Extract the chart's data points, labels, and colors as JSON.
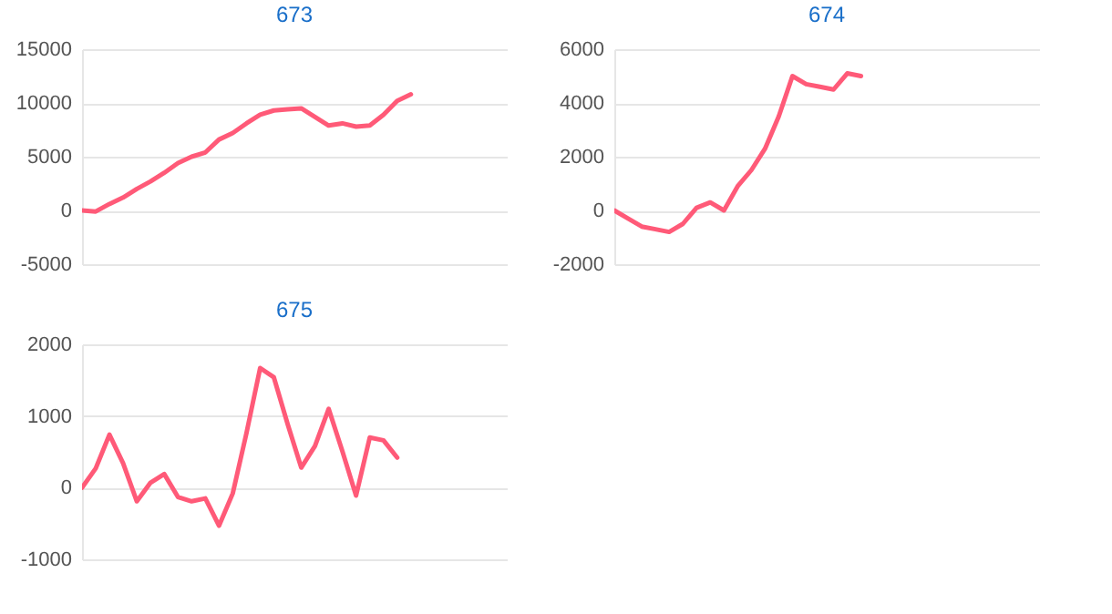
{
  "chart_data": [
    {
      "type": "line",
      "title": "673",
      "categories": [
        null,
        null,
        null,
        null,
        null,
        null,
        null,
        null,
        null,
        null,
        null,
        null,
        null,
        null,
        null,
        null,
        null,
        null,
        null,
        null,
        null,
        null,
        null,
        null,
        null,
        null,
        null,
        null,
        null,
        null,
        null,
        null
      ],
      "series": [
        {
          "color": "#ff5a78",
          "values": [
            0,
            -100,
            600,
            1200,
            2000,
            2700,
            3500,
            4400,
            5000,
            5400,
            6600,
            7200,
            8100,
            8900,
            9300,
            9400,
            9500,
            8700,
            7900,
            8100,
            7800,
            7900,
            8900,
            10200,
            10800,
            null,
            null,
            null,
            null,
            null,
            null,
            null
          ]
        }
      ],
      "ylim": [
        -5000,
        15000
      ],
      "yticks": [
        -5000,
        0,
        5000,
        10000,
        15000
      ],
      "grid": "y",
      "tick_labels": "y",
      "marker": "none",
      "line_style": "solid"
    },
    {
      "type": "line",
      "title": "674",
      "categories": [
        null,
        null,
        null,
        null,
        null,
        null,
        null,
        null,
        null,
        null,
        null,
        null,
        null,
        null,
        null,
        null,
        null,
        null,
        null,
        null,
        null,
        null,
        null,
        null,
        null,
        null,
        null,
        null,
        null,
        null,
        null,
        null
      ],
      "series": [
        {
          "color": "#ff5a78",
          "values": [
            0,
            -300,
            -600,
            -700,
            -800,
            -500,
            100,
            300,
            0,
            900,
            1500,
            2300,
            3500,
            5000,
            4700,
            4600,
            4500,
            5100,
            5000,
            null,
            null,
            null,
            null,
            null,
            null,
            null,
            null,
            null,
            null,
            null,
            null,
            null
          ]
        }
      ],
      "ylim": [
        -2000,
        6000
      ],
      "yticks": [
        -2000,
        0,
        2000,
        4000,
        6000
      ],
      "grid": "y",
      "tick_labels": "y",
      "marker": "none",
      "line_style": "solid"
    },
    {
      "type": "line",
      "title": "675",
      "categories": [
        null,
        null,
        null,
        null,
        null,
        null,
        null,
        null,
        null,
        null,
        null,
        null,
        null,
        null,
        null,
        null,
        null,
        null,
        null,
        null,
        null,
        null,
        null,
        null,
        null,
        null,
        null,
        null,
        null,
        null,
        null,
        null
      ],
      "series": [
        {
          "color": "#ff5a78",
          "values": [
            0,
            270,
            740,
            340,
            -190,
            70,
            190,
            -130,
            -190,
            -150,
            -530,
            -80,
            760,
            1670,
            1540,
            890,
            280,
            580,
            1100,
            510,
            -110,
            700,
            660,
            420,
            null,
            null,
            null,
            null,
            null,
            null,
            null,
            null
          ]
        }
      ],
      "ylim": [
        -1000,
        2000
      ],
      "yticks": [
        -1000,
        0,
        1000,
        2000
      ],
      "grid": "y",
      "tick_labels": "y",
      "marker": "none",
      "line_style": "solid"
    }
  ]
}
